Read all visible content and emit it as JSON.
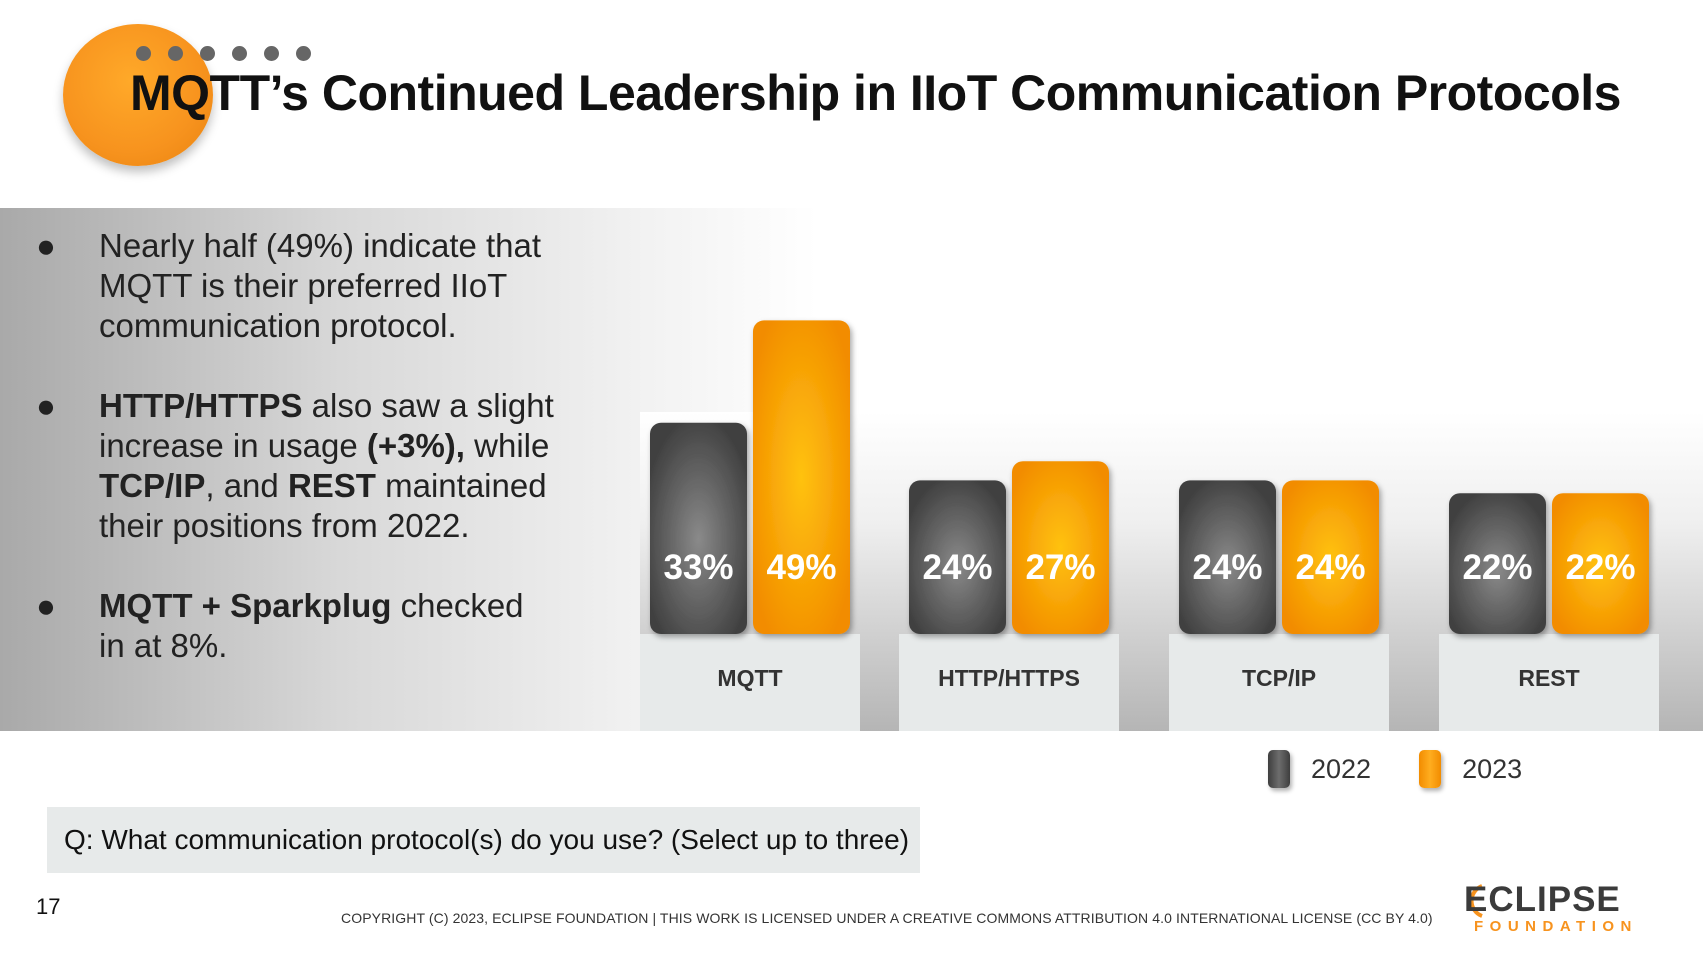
{
  "title": "MQTT’s Continued Leadership in IIoT Communication Protocols",
  "bullets": [
    {
      "parts": [
        {
          "t": "Nearly half (49%) indicate that MQTT is their preferred IIoT communication protocol.",
          "b": false
        }
      ]
    },
    {
      "parts": [
        {
          "t": "HTTP/HTTPS",
          "b": true
        },
        {
          "t": " also saw a slight increase in usage ",
          "b": false
        },
        {
          "t": "(+3%),",
          "b": true
        },
        {
          "t": " while ",
          "b": false
        },
        {
          "t": "TCP/IP",
          "b": true
        },
        {
          "t": ", and ",
          "b": false
        },
        {
          "t": "REST",
          "b": true
        },
        {
          "t": " maintained their positions from 2022.",
          "b": false
        }
      ]
    },
    {
      "parts": [
        {
          "t": "MQTT + Sparkplug",
          "b": true
        },
        {
          "t": " checked in at 8%.",
          "b": false
        }
      ]
    }
  ],
  "bullet_mark": "●",
  "question": "Q: What communication protocol(s) do you use? (Select up to three)",
  "page_number": "17",
  "copyright": "COPYRIGHT (C) 2023, ECLIPSE FOUNDATION | THIS WORK IS LICENSED UNDER A CREATIVE COMMONS ATTRIBUTION 4.0 INTERNATIONAL LICENSE (CC BY 4.0)",
  "logo": {
    "top": "ECLIPSE",
    "bottom": "FOUNDATION",
    "tm": "™"
  },
  "colors": {
    "accent_orange": "#f7931e",
    "dark_gray": "#4a4a4a"
  },
  "chart_data": {
    "type": "bar",
    "categories": [
      "MQTT",
      "HTTP/HTTPS",
      "TCP/IP",
      "REST"
    ],
    "series": [
      {
        "name": "2022",
        "values": [
          33,
          24,
          24,
          22
        ],
        "labels": [
          "33%",
          "24%",
          "24%",
          "22%"
        ],
        "color": "#4a4a4a"
      },
      {
        "name": "2023",
        "values": [
          49,
          27,
          24,
          22
        ],
        "labels": [
          "49%",
          "27%",
          "24%",
          "22%"
        ],
        "color": "#f7931e"
      }
    ],
    "unit": "%",
    "legend_placement": "bottom-right",
    "grid": false
  }
}
